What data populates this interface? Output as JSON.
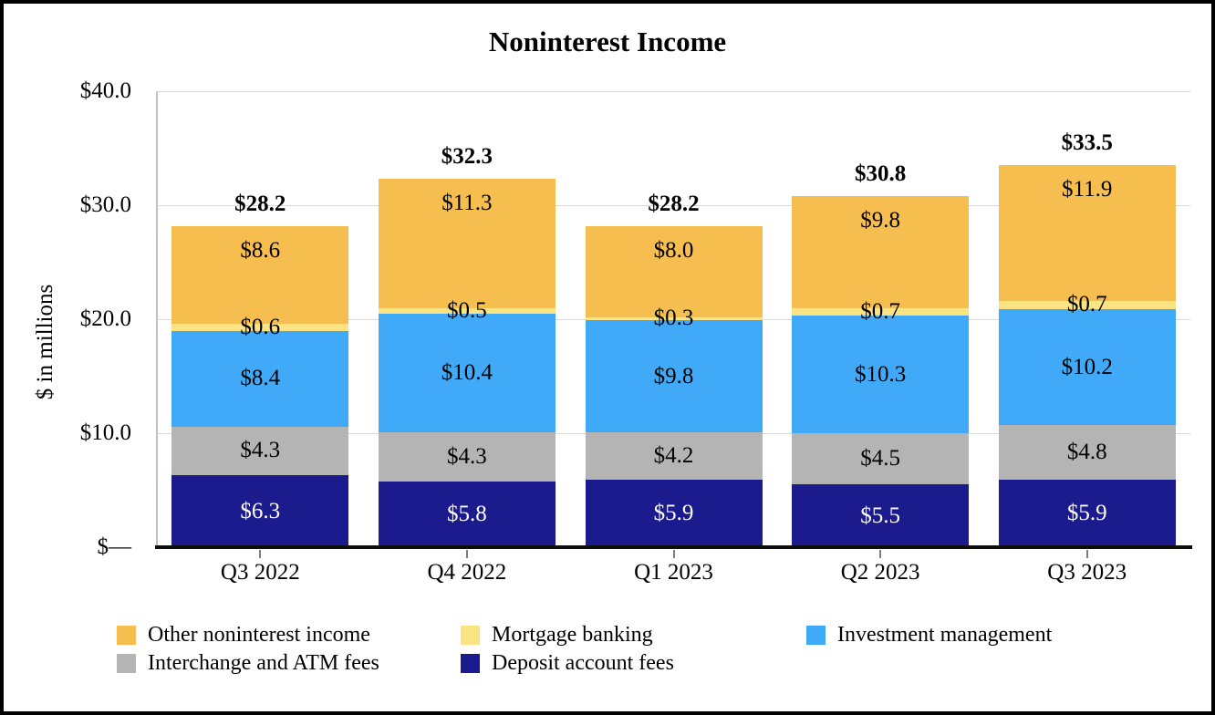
{
  "title": "Noninterest Income",
  "y_axis": {
    "title": "$ in millions",
    "ticks": [
      {
        "value": 40,
        "label": "$40.0"
      },
      {
        "value": 30,
        "label": "$30.0"
      },
      {
        "value": 20,
        "label": "$20.0"
      },
      {
        "value": 10,
        "label": "$10.0"
      },
      {
        "value": 0,
        "label": "$—"
      }
    ]
  },
  "chart_data": {
    "type": "bar",
    "stacked": true,
    "title": "Noninterest Income",
    "ylabel": "$ in millions",
    "ylim": [
      0,
      40
    ],
    "grid": true,
    "legend_position": "bottom",
    "categories": [
      "Q3 2022",
      "Q4 2022",
      "Q1 2023",
      "Q2 2023",
      "Q3 2023"
    ],
    "series": [
      {
        "name": "Deposit account fees",
        "color": "#1B1B8E",
        "label_color": "#FFFFFF",
        "label_placement": "center",
        "values": [
          6.3,
          5.8,
          5.9,
          5.5,
          5.9
        ],
        "labels": [
          "$6.3",
          "$5.8",
          "$5.9",
          "$5.5",
          "$5.9"
        ]
      },
      {
        "name": "Interchange and ATM fees",
        "color": "#B4B4B4",
        "label_color": "#000000",
        "label_placement": "center",
        "values": [
          4.3,
          4.3,
          4.2,
          4.5,
          4.8
        ],
        "labels": [
          "$4.3",
          "$4.3",
          "$4.2",
          "$4.5",
          "$4.8"
        ]
      },
      {
        "name": "Investment management",
        "color": "#41AAF8",
        "label_color": "#000000",
        "label_placement": "center",
        "values": [
          8.4,
          10.4,
          9.8,
          10.3,
          10.2
        ],
        "labels": [
          "$8.4",
          "$10.4",
          "$9.8",
          "$10.3",
          "$10.2"
        ]
      },
      {
        "name": "Mortgage banking",
        "color": "#FAE382",
        "label_color": "#000000",
        "label_placement": "center",
        "values": [
          0.6,
          0.5,
          0.3,
          0.7,
          0.7
        ],
        "labels": [
          "$0.6",
          "$0.5",
          "$0.3",
          "$0.7",
          "$0.7"
        ]
      },
      {
        "name": "Other noninterest income",
        "color": "#F6BE4E",
        "label_color": "#000000",
        "label_placement": "top",
        "values": [
          8.6,
          11.3,
          8.0,
          9.8,
          11.9
        ],
        "labels": [
          "$8.6",
          "$11.3",
          "$8.0",
          "$9.8",
          "$11.9"
        ]
      }
    ],
    "totals": [
      28.2,
      32.3,
      28.2,
      30.8,
      33.5
    ],
    "total_labels": [
      "$28.2",
      "$32.3",
      "$28.2",
      "$30.8",
      "$33.5"
    ]
  },
  "legend": {
    "items": [
      {
        "label": "Other noninterest income",
        "series": "Other noninterest income"
      },
      {
        "label": "Mortgage banking",
        "series": "Mortgage banking"
      },
      {
        "label": "Investment management",
        "series": "Investment management"
      },
      {
        "label": "Interchange and ATM fees",
        "series": "Interchange and ATM fees"
      },
      {
        "label": "Deposit account fees",
        "series": "Deposit account fees"
      }
    ]
  }
}
